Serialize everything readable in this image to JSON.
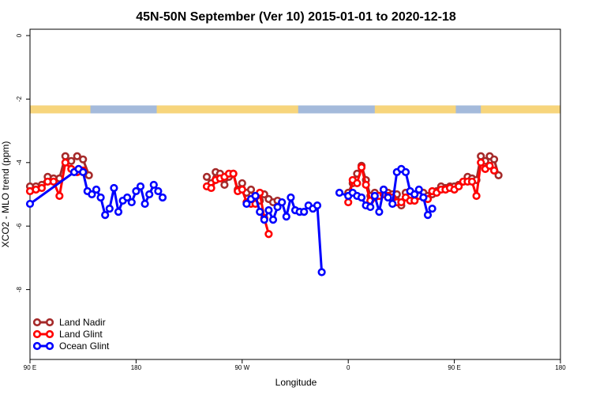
{
  "chart_data": {
    "type": "line",
    "title": "45N-50N September (Ver 10)   2015-01-01 to 2020-12-18",
    "xlabel": "Longitude",
    "ylabel": "XCO2 - MLO trend (ppm)",
    "xlim": [
      -90,
      270
    ],
    "ylim": [
      -10.2,
      0.2
    ],
    "x_ticks": [
      {
        "value": -90,
        "label": "90 E"
      },
      {
        "value": -18,
        "label": "180"
      },
      {
        "value": 54,
        "label": "90 W"
      },
      {
        "value": 126,
        "label": "0"
      },
      {
        "value": 198,
        "label": "90 E"
      },
      {
        "value": 270,
        "label": "180"
      }
    ],
    "y_ticks": [
      {
        "value": 0,
        "label": "0"
      },
      {
        "value": -2,
        "label": "-2"
      },
      {
        "value": -4,
        "label": "-4"
      },
      {
        "value": -6,
        "label": "-6"
      },
      {
        "value": -8,
        "label": "-8"
      }
    ],
    "land_band": {
      "y_range": [
        -2.2,
        -2.45
      ],
      "ocean_color": "#A4BADB",
      "land_color": "#F7D57C",
      "land_segments": [
        [
          -90,
          -49
        ],
        [
          -4,
          92
        ],
        [
          144,
          199
        ],
        [
          216,
          270
        ]
      ]
    },
    "legend_position": "bottom-left",
    "series": [
      {
        "name": "Land Nadir",
        "color": "#A52A2A",
        "segments": [
          [
            [
              -90,
              -4.75
            ],
            [
              -86,
              -4.75
            ],
            [
              -82,
              -4.7
            ],
            [
              -78,
              -4.45
            ],
            [
              -74,
              -4.5
            ],
            [
              -70,
              -4.5
            ],
            [
              -66,
              -3.8
            ],
            [
              -62,
              -3.95
            ],
            [
              -58,
              -3.8
            ],
            [
              -54,
              -3.9
            ],
            [
              -50,
              -4.4
            ]
          ],
          [
            [
              30,
              -4.45
            ],
            [
              33,
              -4.65
            ],
            [
              36,
              -4.3
            ],
            [
              39,
              -4.35
            ],
            [
              42,
              -4.7
            ],
            [
              45,
              -4.45
            ],
            [
              48,
              -4.35
            ],
            [
              51,
              -4.85
            ],
            [
              54,
              -4.65
            ],
            [
              57,
              -4.95
            ],
            [
              60,
              -4.85
            ],
            [
              63,
              -5.25
            ],
            [
              66,
              -5.2
            ],
            [
              69,
              -5.0
            ],
            [
              72,
              -5.15
            ],
            [
              75,
              -5.25
            ],
            [
              78,
              -5.2
            ]
          ],
          [
            [
              126,
              -4.95
            ],
            [
              129,
              -4.65
            ],
            [
              132,
              -4.35
            ],
            [
              135,
              -4.1
            ],
            [
              138,
              -4.55
            ],
            [
              141,
              -5.05
            ],
            [
              144,
              -4.95
            ],
            [
              147,
              -5.05
            ],
            [
              150,
              -4.85
            ],
            [
              153,
              -4.95
            ],
            [
              156,
              -5.0
            ],
            [
              159,
              -5.0
            ],
            [
              162,
              -5.35
            ],
            [
              165,
              -4.95
            ],
            [
              168,
              -5.05
            ],
            [
              171,
              -5.2
            ],
            [
              174,
              -4.95
            ],
            [
              177,
              -4.95
            ],
            [
              180,
              -5.05
            ],
            [
              183,
              -5.0
            ],
            [
              186,
              -4.9
            ],
            [
              189,
              -4.75
            ],
            [
              192,
              -4.8
            ],
            [
              195,
              -4.75
            ],
            [
              198,
              -4.75
            ],
            [
              201,
              -4.7
            ],
            [
              204,
              -4.6
            ],
            [
              207,
              -4.45
            ],
            [
              210,
              -4.5
            ],
            [
              213,
              -4.55
            ],
            [
              216,
              -3.8
            ],
            [
              219,
              -3.95
            ],
            [
              222,
              -3.8
            ],
            [
              225,
              -3.9
            ],
            [
              228,
              -4.4
            ]
          ]
        ]
      },
      {
        "name": "Land Glint",
        "color": "#FF0000",
        "segments": [
          [
            [
              -90,
              -4.9
            ],
            [
              -86,
              -4.85
            ],
            [
              -82,
              -4.8
            ],
            [
              -78,
              -4.6
            ],
            [
              -74,
              -4.6
            ],
            [
              -70,
              -5.05
            ],
            [
              -66,
              -4.0
            ],
            [
              -62,
              -4.2
            ],
            [
              -58,
              -4.3
            ],
            [
              -54,
              -4.25
            ]
          ],
          [
            [
              30,
              -4.75
            ],
            [
              33,
              -4.8
            ],
            [
              36,
              -4.55
            ],
            [
              39,
              -4.5
            ],
            [
              42,
              -4.45
            ],
            [
              45,
              -4.35
            ],
            [
              48,
              -4.35
            ],
            [
              51,
              -4.9
            ],
            [
              54,
              -4.85
            ],
            [
              57,
              -5.25
            ],
            [
              60,
              -5.3
            ],
            [
              63,
              -5.3
            ],
            [
              66,
              -4.95
            ],
            [
              69,
              -5.75
            ],
            [
              72,
              -6.25
            ]
          ],
          [
            [
              126,
              -5.25
            ],
            [
              129,
              -4.55
            ],
            [
              132,
              -4.65
            ],
            [
              135,
              -4.15
            ],
            [
              138,
              -4.7
            ],
            [
              141,
              -5.2
            ],
            [
              144,
              -5.1
            ],
            [
              147,
              -5.05
            ],
            [
              150,
              -5.0
            ],
            [
              153,
              -5.05
            ],
            [
              156,
              -5.1
            ],
            [
              159,
              -5.25
            ],
            [
              162,
              -5.25
            ],
            [
              165,
              -5.1
            ],
            [
              168,
              -5.2
            ],
            [
              171,
              -5.2
            ],
            [
              174,
              -5.05
            ],
            [
              177,
              -5.1
            ],
            [
              180,
              -5.15
            ],
            [
              183,
              -4.9
            ],
            [
              186,
              -4.95
            ],
            [
              189,
              -4.85
            ],
            [
              192,
              -4.85
            ],
            [
              195,
              -4.8
            ],
            [
              198,
              -4.85
            ],
            [
              201,
              -4.75
            ],
            [
              204,
              -4.6
            ],
            [
              207,
              -4.6
            ],
            [
              210,
              -4.6
            ],
            [
              213,
              -5.05
            ],
            [
              216,
              -4.0
            ],
            [
              219,
              -4.2
            ],
            [
              222,
              -4.1
            ],
            [
              225,
              -4.25
            ]
          ]
        ]
      },
      {
        "name": "Ocean Glint",
        "color": "#0000FF",
        "segments": [
          [
            [
              -90,
              -5.3
            ],
            [
              -60,
              -4.3
            ],
            [
              -57,
              -4.2
            ],
            [
              -54,
              -4.3
            ],
            [
              -51,
              -4.9
            ],
            [
              -48,
              -5.0
            ],
            [
              -45,
              -4.85
            ],
            [
              -42,
              -5.1
            ],
            [
              -39,
              -5.65
            ],
            [
              -36,
              -5.45
            ],
            [
              -33,
              -4.8
            ],
            [
              -30,
              -5.55
            ],
            [
              -27,
              -5.2
            ],
            [
              -24,
              -5.1
            ],
            [
              -21,
              -5.25
            ],
            [
              -18,
              -4.9
            ],
            [
              -15,
              -4.75
            ],
            [
              -12,
              -5.3
            ],
            [
              -9,
              -5.0
            ],
            [
              -6,
              -4.7
            ],
            [
              -3,
              -4.9
            ],
            [
              0,
              -5.1
            ]
          ],
          [
            [
              57,
              -5.3
            ],
            [
              60,
              -5.15
            ],
            [
              63,
              -5.05
            ],
            [
              66,
              -5.55
            ],
            [
              69,
              -5.8
            ],
            [
              72,
              -5.5
            ],
            [
              75,
              -5.8
            ],
            [
              78,
              -5.4
            ],
            [
              81,
              -5.25
            ],
            [
              84,
              -5.7
            ],
            [
              87,
              -5.1
            ],
            [
              90,
              -5.5
            ],
            [
              93,
              -5.55
            ],
            [
              96,
              -5.55
            ],
            [
              99,
              -5.35
            ],
            [
              102,
              -5.45
            ],
            [
              105,
              -5.35
            ],
            [
              108,
              -7.45
            ]
          ],
          [
            [
              120,
              -4.95
            ],
            [
              126,
              -5.05
            ],
            [
              129,
              -4.95
            ],
            [
              132,
              -5.05
            ],
            [
              135,
              -5.1
            ],
            [
              138,
              -5.35
            ],
            [
              141,
              -5.4
            ],
            [
              144,
              -5.05
            ],
            [
              147,
              -5.55
            ],
            [
              150,
              -4.85
            ],
            [
              153,
              -5.1
            ],
            [
              156,
              -5.3
            ],
            [
              159,
              -4.3
            ],
            [
              162,
              -4.2
            ],
            [
              165,
              -4.3
            ],
            [
              168,
              -4.9
            ],
            [
              171,
              -5.0
            ],
            [
              174,
              -4.85
            ],
            [
              177,
              -5.1
            ],
            [
              180,
              -5.65
            ],
            [
              183,
              -5.45
            ]
          ]
        ]
      }
    ]
  }
}
